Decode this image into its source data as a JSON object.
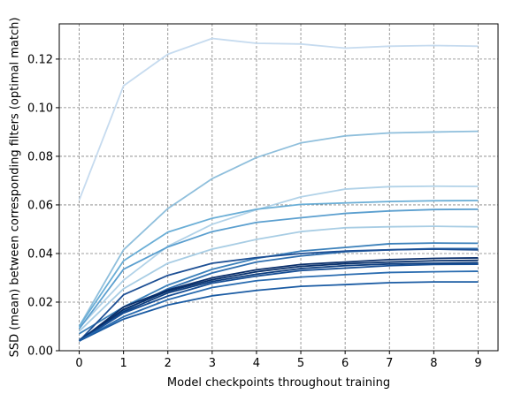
{
  "chart_data": {
    "type": "line",
    "title": "",
    "xlabel": "Model checkpoints throughout training",
    "ylabel": "SSD (mean) between corresponding filters (optimal match)",
    "xlim": [
      -0.45,
      9.45
    ],
    "ylim": [
      0.0,
      0.1345
    ],
    "x": [
      0,
      1,
      2,
      3,
      4,
      5,
      6,
      7,
      8,
      9
    ],
    "xticks": [
      0,
      1,
      2,
      3,
      4,
      5,
      6,
      7,
      8,
      9
    ],
    "yticks": [
      0.0,
      0.02,
      0.04,
      0.06,
      0.08,
      0.1,
      0.12
    ],
    "ytick_labels": [
      "0.00",
      "0.02",
      "0.04",
      "0.06",
      "0.08",
      "0.10",
      "0.12"
    ],
    "grid": true,
    "grid_style": "dashed gray",
    "series": [
      {
        "color": "#c6dbef",
        "values": [
          0.062,
          0.109,
          0.122,
          0.1285,
          0.1265,
          0.1262,
          0.1245,
          0.1253,
          0.1256,
          0.1253
        ]
      },
      {
        "color": "#8fbfdc",
        "values": [
          0.01,
          0.0415,
          0.0585,
          0.0708,
          0.0795,
          0.0855,
          0.0884,
          0.0896,
          0.09,
          0.0903
        ]
      },
      {
        "color": "#b1d2e8",
        "values": [
          0.0095,
          0.029,
          0.043,
          0.052,
          0.058,
          0.0633,
          0.0665,
          0.0675,
          0.0677,
          0.0676
        ]
      },
      {
        "color": "#6aaed6",
        "values": [
          0.01,
          0.037,
          0.0488,
          0.0545,
          0.0582,
          0.0602,
          0.0608,
          0.0614,
          0.0617,
          0.0618
        ]
      },
      {
        "color": "#5b9fcf",
        "values": [
          0.009,
          0.0335,
          0.0427,
          0.049,
          0.0528,
          0.0547,
          0.0565,
          0.0575,
          0.0581,
          0.0582
        ]
      },
      {
        "color": "#a8cde4",
        "values": [
          0.008,
          0.0255,
          0.036,
          0.0418,
          0.0458,
          0.049,
          0.0506,
          0.051,
          0.0512,
          0.051
        ]
      },
      {
        "color": "#3b80ba",
        "values": [
          0.007,
          0.018,
          0.027,
          0.0335,
          0.038,
          0.041,
          0.0425,
          0.044,
          0.0443,
          0.0442
        ]
      },
      {
        "color": "#2f6faf",
        "values": [
          0.0045,
          0.0165,
          0.0255,
          0.032,
          0.0365,
          0.039,
          0.0407,
          0.0415,
          0.042,
          0.042
        ]
      },
      {
        "color": "#1d4f94",
        "values": [
          0.004,
          0.023,
          0.031,
          0.036,
          0.0383,
          0.04,
          0.041,
          0.0415,
          0.0418,
          0.0415
        ]
      },
      {
        "color": "#0a2f6b",
        "values": [
          0.004,
          0.018,
          0.025,
          0.03,
          0.0333,
          0.0355,
          0.0365,
          0.0375,
          0.038,
          0.0382
        ]
      },
      {
        "color": "#08306b",
        "values": [
          0.004,
          0.017,
          0.0245,
          0.0292,
          0.0325,
          0.0347,
          0.0358,
          0.0365,
          0.037,
          0.0372
        ]
      },
      {
        "color": "#0d3d7e",
        "values": [
          0.004,
          0.016,
          0.0238,
          0.0285,
          0.0315,
          0.0338,
          0.035,
          0.0357,
          0.036,
          0.0362
        ]
      },
      {
        "color": "#164e95",
        "values": [
          0.004,
          0.0155,
          0.0225,
          0.0278,
          0.0307,
          0.033,
          0.034,
          0.035,
          0.0355,
          0.0356
        ]
      },
      {
        "color": "#2a6cb0",
        "values": [
          0.004,
          0.014,
          0.021,
          0.026,
          0.0288,
          0.0303,
          0.0313,
          0.0322,
          0.0325,
          0.0327
        ]
      },
      {
        "color": "#1a5ba3",
        "values": [
          0.004,
          0.013,
          0.0188,
          0.0226,
          0.0248,
          0.0265,
          0.0272,
          0.028,
          0.0283,
          0.0283
        ]
      }
    ]
  }
}
